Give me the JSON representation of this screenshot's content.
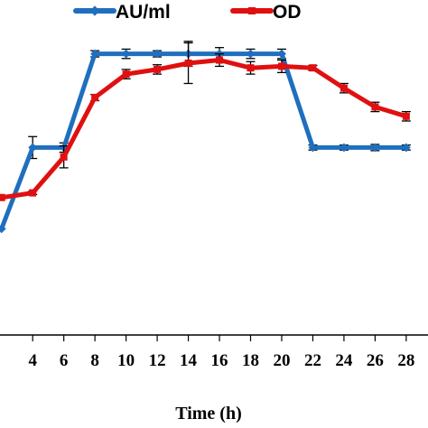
{
  "chart_data": {
    "type": "line",
    "xlabel": "Time (h)",
    "x": [
      2,
      4,
      6,
      8,
      10,
      12,
      14,
      16,
      18,
      20,
      22,
      24,
      26,
      28
    ],
    "xticks": [
      4,
      6,
      8,
      10,
      12,
      14,
      16,
      18,
      20,
      22,
      24,
      26,
      28
    ],
    "xlim": [
      1.9,
      29.4
    ],
    "ylim": [
      0,
      100
    ],
    "series": [
      {
        "name": "AU/ml",
        "color": "#1f6fbf",
        "marker": "diamond",
        "values": [
          34,
          60,
          60,
          90,
          90,
          90,
          90,
          90,
          90,
          90,
          60,
          60,
          60,
          60
        ],
        "errors": [
          0,
          3.5,
          1.5,
          1,
          1.5,
          1,
          4,
          2,
          1.5,
          1.5,
          0.8,
          0.8,
          1,
          0.8
        ]
      },
      {
        "name": "OD",
        "color": "#e01010",
        "marker": "square",
        "values": [
          44,
          45.5,
          57,
          76,
          83.5,
          85,
          87,
          88,
          85.5,
          86,
          85.5,
          79,
          73,
          70
        ],
        "errors": [
          0,
          0.5,
          3.5,
          1,
          1.5,
          1.5,
          6.5,
          2,
          2,
          2,
          0.8,
          1.5,
          1.5,
          1.5
        ]
      }
    ],
    "legend": "top",
    "grid": false
  }
}
